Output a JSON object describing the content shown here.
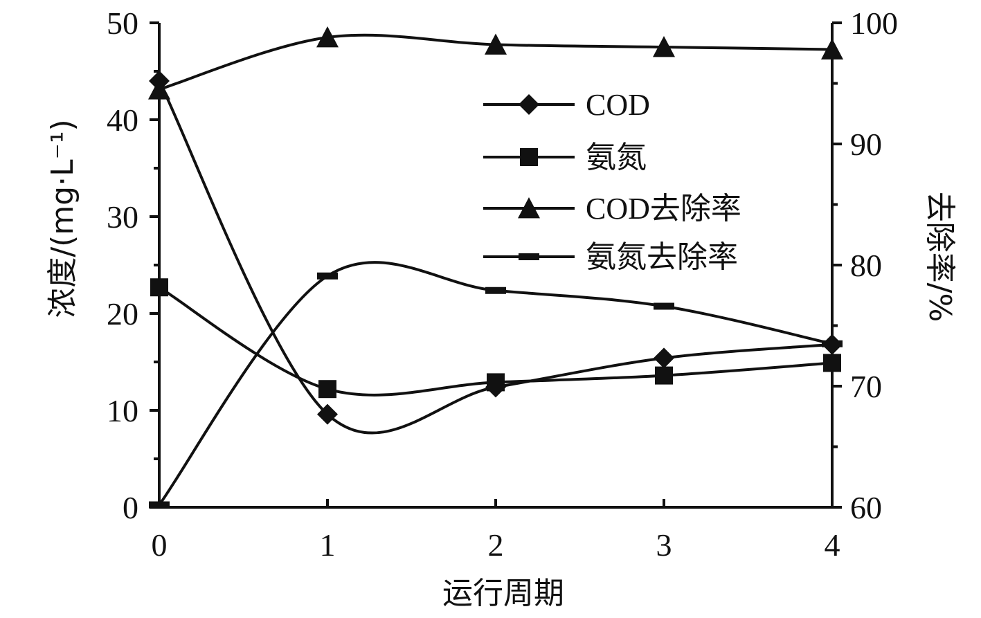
{
  "chart_data": {
    "type": "line",
    "xlabel": "运行周期",
    "ylabel_left": "浓度/(mg·L⁻¹)",
    "ylabel_right": "去除率/%",
    "x_ticks": [
      "0",
      "1",
      "2",
      "3",
      "4"
    ],
    "y_left_ticks": [
      "0",
      "10",
      "20",
      "30",
      "40",
      "50"
    ],
    "y_right_ticks": [
      "60",
      "70",
      "80",
      "90",
      "100"
    ],
    "x": [
      0,
      1,
      2,
      3,
      4
    ],
    "ylim_left": [
      0,
      50
    ],
    "ylim_right": [
      60,
      100
    ],
    "grid": false,
    "legend_position": "top-right",
    "series": [
      {
        "name": "COD",
        "axis": "left",
        "marker": "diamond",
        "values": [
          44.0,
          9.6,
          12.4,
          15.4,
          16.8
        ]
      },
      {
        "name": "氨氮",
        "axis": "left",
        "marker": "square",
        "values": [
          22.7,
          12.2,
          12.9,
          13.6,
          14.9
        ]
      },
      {
        "name": "COD去除率",
        "axis": "right",
        "marker": "triangle",
        "values": [
          94.5,
          98.8,
          98.2,
          98.0,
          97.8
        ]
      },
      {
        "name": "氨氮去除率",
        "axis": "right",
        "marker": "dash",
        "values": [
          60.2,
          79.1,
          77.9,
          76.6,
          73.5
        ]
      }
    ]
  }
}
